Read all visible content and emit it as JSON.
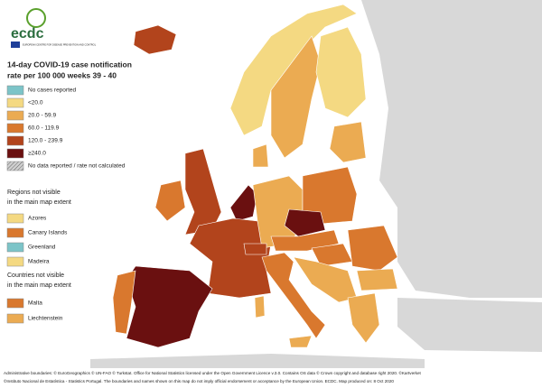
{
  "header": {
    "logo": "ecdc",
    "organization": "EUROPEAN CENTRE FOR DISEASE PREVENTION AND CONTROL"
  },
  "title": [
    "14-day COVID-19 case notification",
    "rate per 100 000 weeks 39 - 40"
  ],
  "legend": {
    "items": [
      {
        "label": "No cases reported",
        "color": "#7cc4c8"
      },
      {
        "label": "<20.0",
        "color": "#f4d982"
      },
      {
        "label": "20.0 - 59.9",
        "color": "#ebab52"
      },
      {
        "label": "60.0 - 119.9",
        "color": "#d9782e"
      },
      {
        "label": "120.0 - 239.9",
        "color": "#b2441c"
      },
      {
        "label": "≥240.0",
        "color": "#6a1010"
      },
      {
        "label": "No data reported / rate not calculated",
        "color": "#9a9a9a",
        "pattern": "hatched"
      }
    ]
  },
  "regions_not_visible": {
    "heading": [
      "Regions not visible",
      "in the main map extent"
    ],
    "items": [
      {
        "label": "Azores",
        "color": "#f4d982"
      },
      {
        "label": "Canary Islands",
        "color": "#d9782e"
      },
      {
        "label": "Greenland",
        "color": "#7cc4c8"
      },
      {
        "label": "Madeira",
        "color": "#f4d982"
      }
    ]
  },
  "countries_not_visible": {
    "heading": [
      "Countries not visible",
      "in the main map extent"
    ],
    "items": [
      {
        "label": "Malta",
        "color": "#d9782e"
      },
      {
        "label": "Liechtenstein",
        "color": "#ebab52"
      }
    ]
  },
  "footer": [
    "Administrative boundaries: © EuroGeographics © UN-FAO © Turkstat. Office for National Statistics licensed under the Open Government Licence v.3.0. Contains OS data © Crown copyright and database right 2020. ©Kartverket",
    "©Instituto Nacional de Estatística - Statistics Portugal. The boundaries and names shown on this map do not imply official endorsement or acceptance by the European Union. ECDC. Map produced on: 8 Oct 2020"
  ]
}
